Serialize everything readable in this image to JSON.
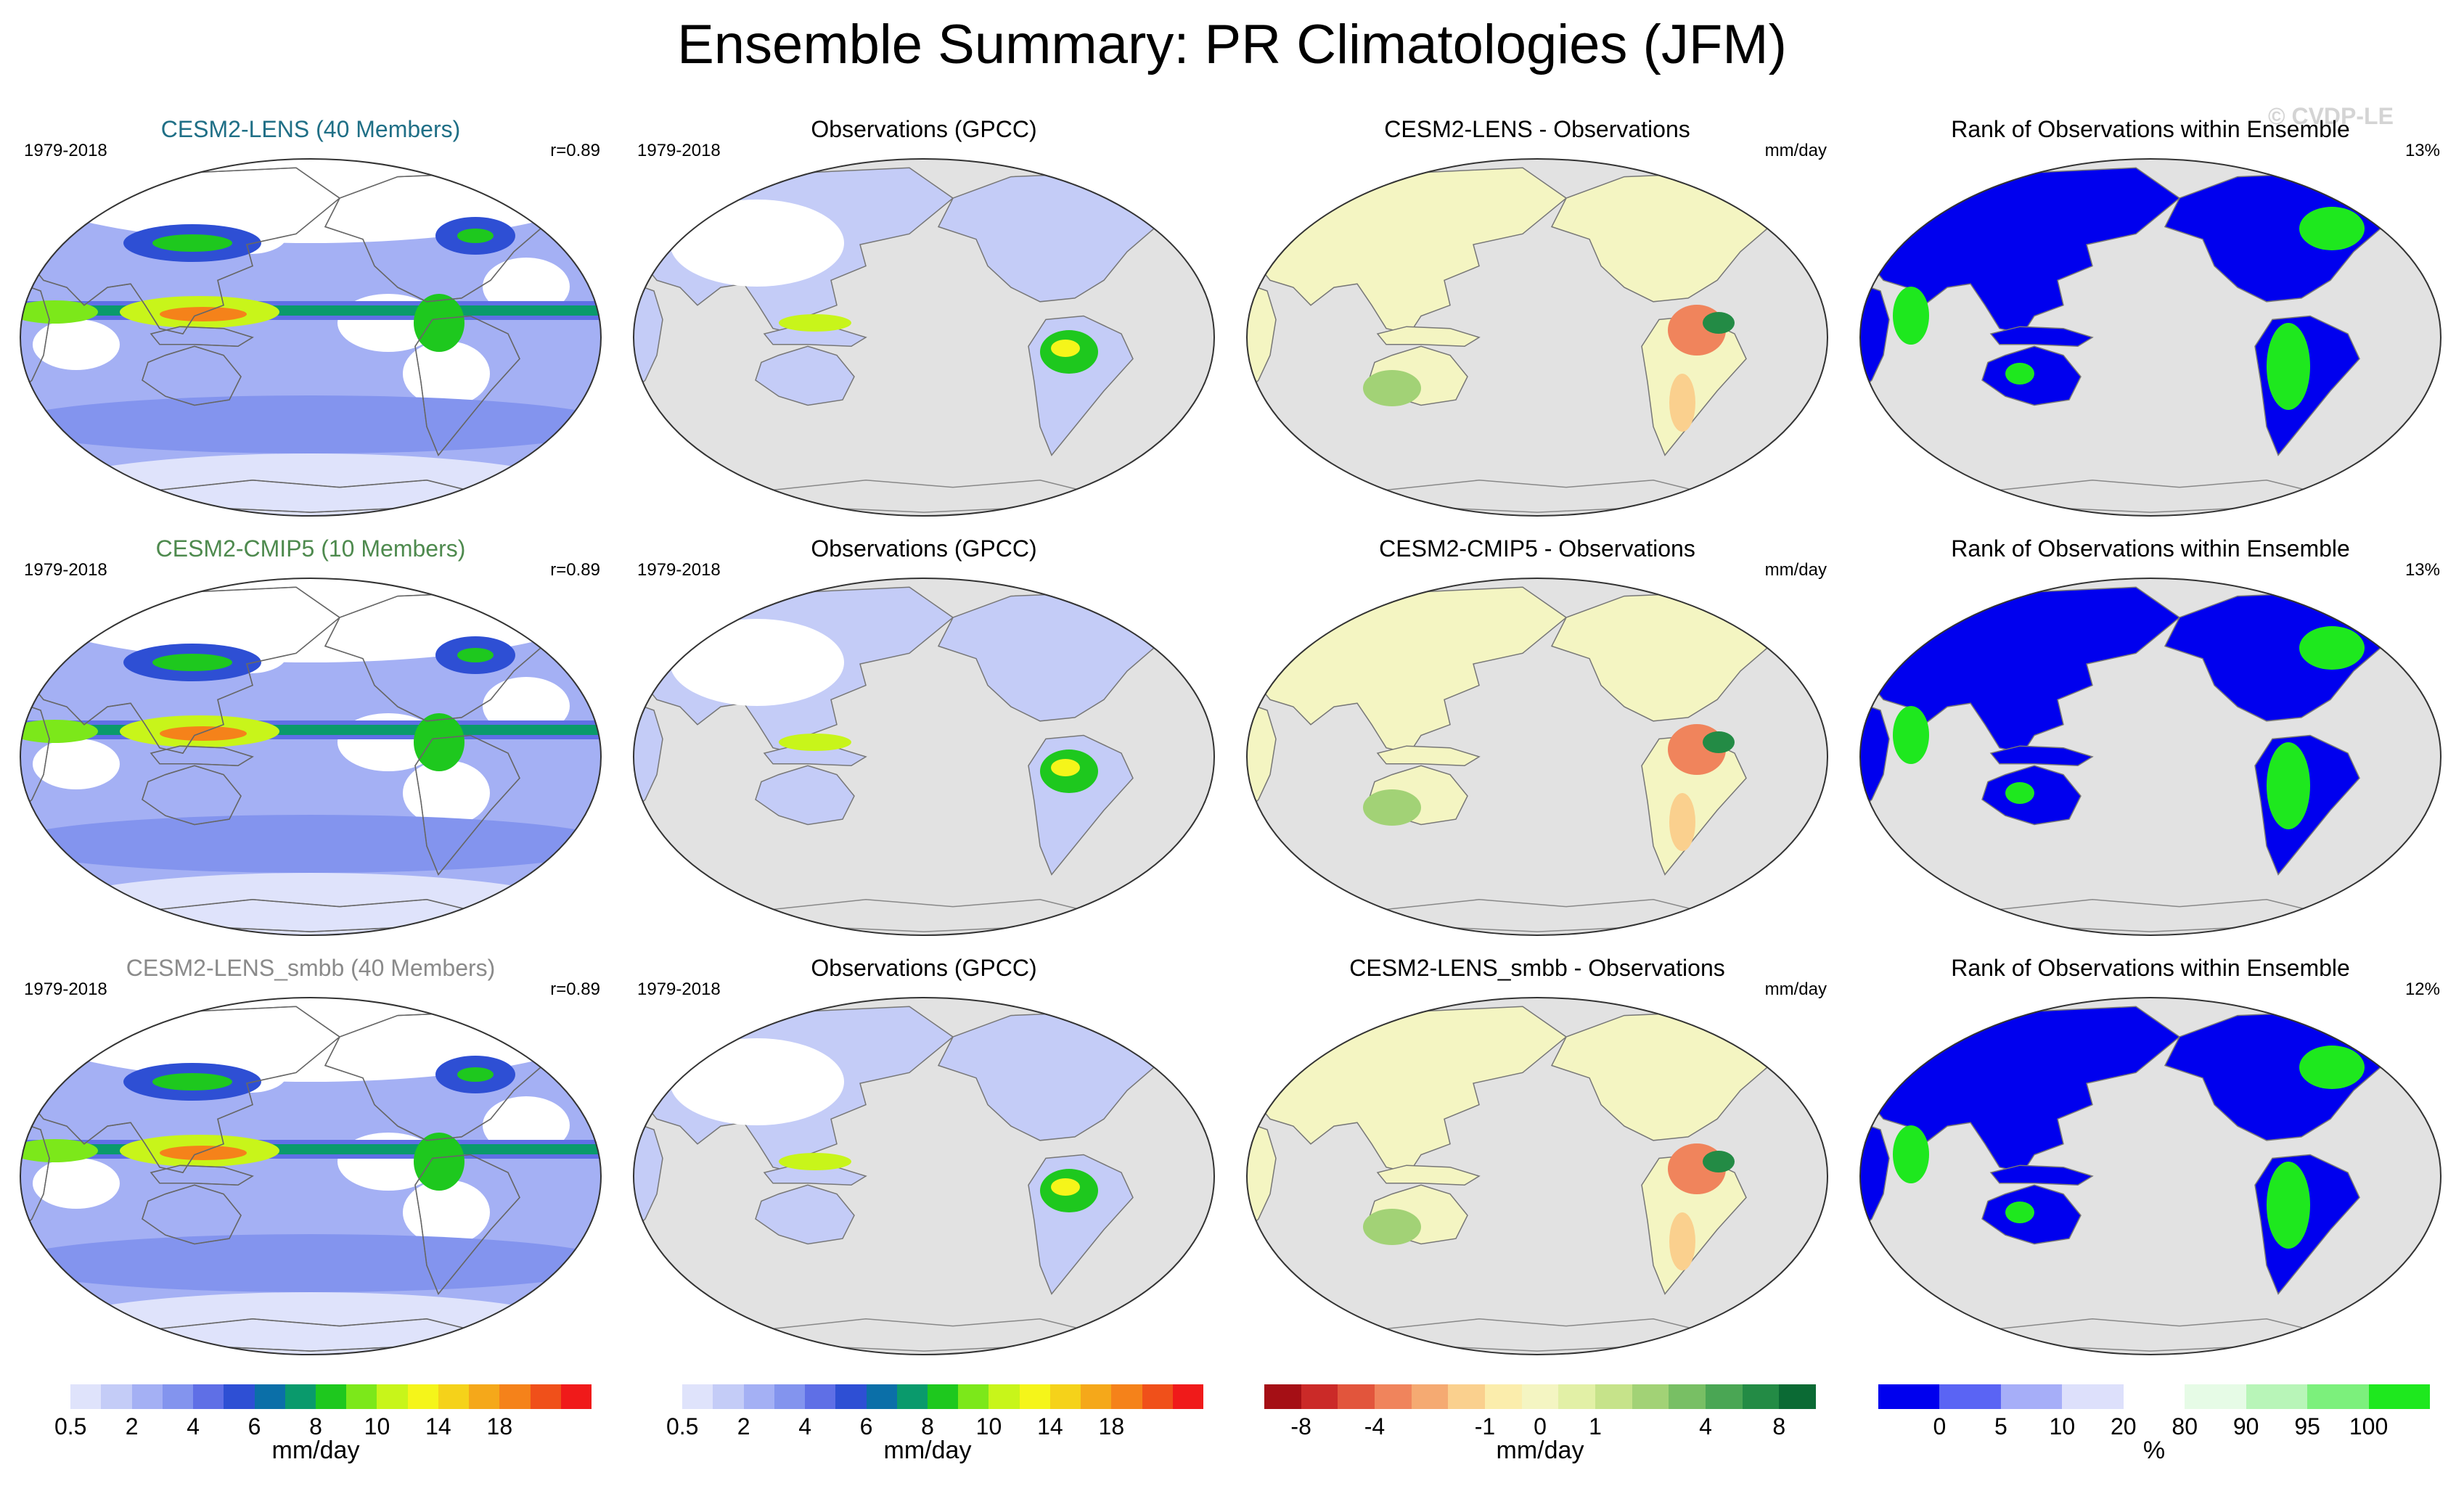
{
  "title": "Ensemble Summary: PR Climatologies (JFM)",
  "watermark": "© CVDP-LE",
  "rows": [
    {
      "ens": {
        "title": "CESM2-LENS (40 Members)",
        "title_color": "#1f6f86",
        "period": "1979-2018",
        "corr": "r=0.89"
      },
      "obs": {
        "title": "Observations (GPCC)",
        "period": "1979-2018"
      },
      "diff": {
        "title": "CESM2-LENS - Observations",
        "units": "mm/day"
      },
      "rank": {
        "title": "Rank of Observations within Ensemble",
        "pct": "13%"
      }
    },
    {
      "ens": {
        "title": "CESM2-CMIP5 (10 Members)",
        "title_color": "#4e8a4e",
        "period": "1979-2018",
        "corr": "r=0.89"
      },
      "obs": {
        "title": "Observations (GPCC)",
        "period": "1979-2018"
      },
      "diff": {
        "title": "CESM2-CMIP5 - Observations",
        "units": "mm/day"
      },
      "rank": {
        "title": "Rank of Observations within Ensemble",
        "pct": "13%"
      }
    },
    {
      "ens": {
        "title": "CESM2-LENS_smbb (40 Members)",
        "title_color": "#8a8a8a",
        "period": "1979-2018",
        "corr": "r=0.89"
      },
      "obs": {
        "title": "Observations (GPCC)",
        "period": "1979-2018"
      },
      "diff": {
        "title": "CESM2-LENS_smbb - Observations",
        "units": "mm/day"
      },
      "rank": {
        "title": "Rank of Observations within Ensemble",
        "pct": "12%"
      }
    }
  ],
  "colorbars": [
    {
      "unit": "mm/day",
      "colors": [
        "#ffffff",
        "#dfe3fb",
        "#c4ccf7",
        "#a4b0f4",
        "#8394ee",
        "#5f6fe6",
        "#2e4fd4",
        "#0b6fa8",
        "#0a9a6c",
        "#1ec81e",
        "#7ce81a",
        "#c8f51a",
        "#f5f51a",
        "#f5d21a",
        "#f5a81a",
        "#f5821a",
        "#f0501a",
        "#f01a1a"
      ],
      "ticks": [
        "0.5",
        "2",
        "4",
        "6",
        "8",
        "10",
        "14",
        "18"
      ]
    },
    {
      "unit": "mm/day",
      "colors": [
        "#ffffff",
        "#dfe3fb",
        "#c4ccf7",
        "#a4b0f4",
        "#8394ee",
        "#5f6fe6",
        "#2e4fd4",
        "#0b6fa8",
        "#0a9a6c",
        "#1ec81e",
        "#7ce81a",
        "#c8f51a",
        "#f5f51a",
        "#f5d21a",
        "#f5a81a",
        "#f5821a",
        "#f0501a",
        "#f01a1a"
      ],
      "ticks": [
        "0.5",
        "2",
        "4",
        "6",
        "8",
        "10",
        "14",
        "18"
      ]
    },
    {
      "unit": "mm/day",
      "colors": [
        "#a50f15",
        "#cb2a28",
        "#e2553c",
        "#f0845c",
        "#f5aa72",
        "#fad08e",
        "#fbedac",
        "#f4f5c2",
        "#e2f0a6",
        "#c6e38a",
        "#a2d276",
        "#78bf64",
        "#4aa654",
        "#238b45",
        "#0b6a34"
      ],
      "ticks": [
        "-8",
        "-4",
        "-1",
        "0",
        "1",
        "4",
        "8"
      ]
    },
    {
      "unit": "%",
      "colors": [
        "#0000ee",
        "#5a64f4",
        "#a6aef8",
        "#dde0fb",
        "#ffffff",
        "#e6fbe6",
        "#b8f5b8",
        "#7cf07c",
        "#1ee81e"
      ],
      "ticks": [
        "0",
        "5",
        "10",
        "20",
        "80",
        "90",
        "95",
        "100"
      ]
    }
  ]
}
